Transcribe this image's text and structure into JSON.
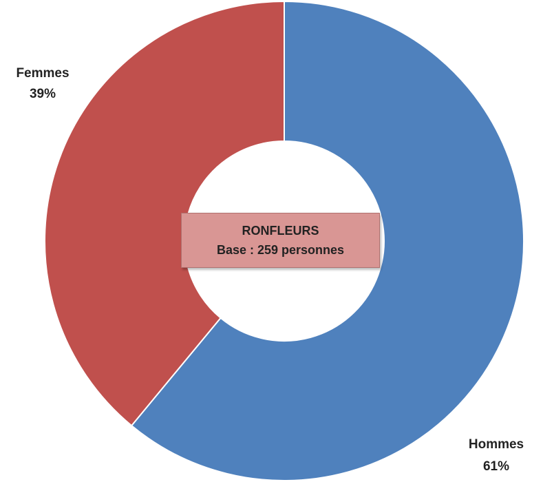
{
  "chart_data": {
    "type": "pie",
    "donut": true,
    "categories": [
      "Hommes",
      "Femmes"
    ],
    "values": [
      61,
      39
    ],
    "value_labels": [
      "61%",
      "39%"
    ],
    "colors": [
      "#4f81bd",
      "#c0504d"
    ],
    "center_text": {
      "line1": "RONFLEURS",
      "line2": "Base : 259 personnes"
    },
    "legend": "none"
  }
}
